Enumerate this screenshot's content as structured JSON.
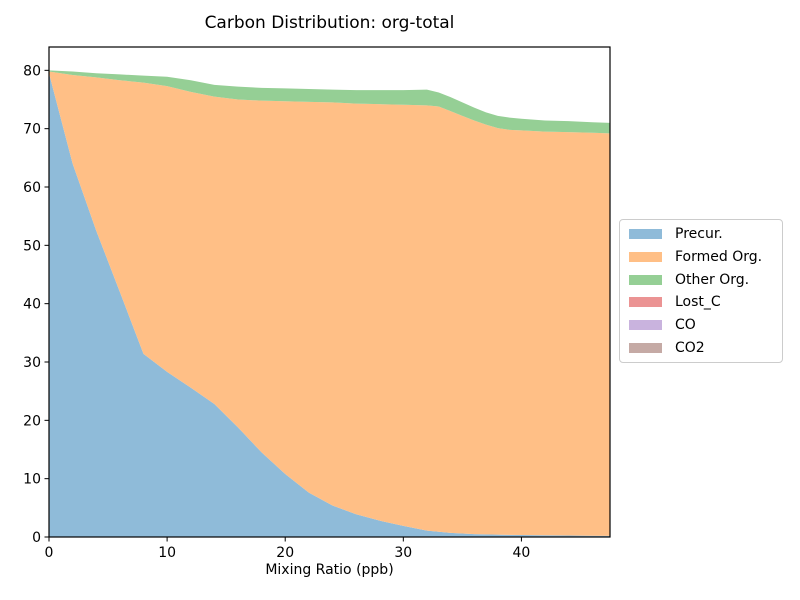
{
  "chart_data": {
    "type": "area",
    "stacked": true,
    "title": "Carbon Distribution: org-total",
    "xlabel": "Mixing Ratio (ppb)",
    "ylabel": "",
    "grid": false,
    "legend_position": "center right, outside axes",
    "xlim": [
      0,
      47.5
    ],
    "ylim": [
      0,
      84
    ],
    "xticks": [
      0,
      10,
      20,
      30,
      40
    ],
    "yticks": [
      0,
      10,
      20,
      30,
      40,
      50,
      60,
      70,
      80
    ],
    "x": [
      0,
      2,
      4,
      6,
      8,
      10,
      12,
      14,
      16,
      18,
      20,
      22,
      24,
      26,
      28,
      30,
      32,
      33,
      34,
      35,
      36,
      37,
      38,
      39,
      40,
      42,
      44,
      46,
      47.5
    ],
    "series": [
      {
        "id": "precur",
        "name": "Precur.",
        "color": "#8fbbd9",
        "values": [
          79.5,
          64,
          52.5,
          42,
          31.4,
          28.3,
          25.6,
          22.8,
          18.8,
          14.5,
          10.8,
          7.6,
          5.4,
          3.9,
          2.8,
          1.9,
          1.1,
          0.9,
          0.7,
          0.6,
          0.5,
          0.45,
          0.4,
          0.37,
          0.35,
          0.3,
          0.25,
          0.22,
          0.2
        ]
      },
      {
        "id": "formed-org",
        "name": "Formed Org.",
        "color": "#ffbf86",
        "values": [
          0.3,
          15.2,
          26.3,
          36.3,
          46.5,
          49.0,
          50.7,
          52.7,
          56.2,
          60.3,
          63.9,
          67.0,
          69.1,
          70.4,
          71.4,
          72.2,
          72.9,
          72.9,
          72.3,
          71.6,
          70.9,
          70.25,
          69.7,
          69.43,
          69.35,
          69.2,
          69.15,
          69.08,
          69.0
        ]
      },
      {
        "id": "other-org",
        "name": "Other Org.",
        "color": "#95cf95",
        "values": [
          0.2,
          0.6,
          0.7,
          1.0,
          1.2,
          1.6,
          2.0,
          2.0,
          2.2,
          2.2,
          2.2,
          2.2,
          2.2,
          2.3,
          2.4,
          2.5,
          2.7,
          2.4,
          2.4,
          2.3,
          2.2,
          2.1,
          2.1,
          2.1,
          2.0,
          1.9,
          1.9,
          1.8,
          1.8
        ]
      },
      {
        "id": "lost-c",
        "name": "Lost_C",
        "color": "#eb9393",
        "values": [
          0,
          0,
          0,
          0,
          0,
          0,
          0,
          0,
          0,
          0,
          0,
          0,
          0,
          0,
          0,
          0,
          0,
          0,
          0,
          0,
          0,
          0,
          0,
          0,
          0,
          0,
          0,
          0,
          0
        ]
      },
      {
        "id": "co",
        "name": "CO",
        "color": "#c9b3de",
        "values": [
          0,
          0,
          0,
          0,
          0,
          0,
          0,
          0,
          0,
          0,
          0,
          0,
          0,
          0,
          0,
          0,
          0,
          0,
          0,
          0,
          0,
          0,
          0,
          0,
          0,
          0,
          0,
          0,
          0
        ]
      },
      {
        "id": "co2",
        "name": "CO2",
        "color": "#c5aaa5",
        "values": [
          0,
          0,
          0,
          0,
          0,
          0,
          0,
          0,
          0,
          0,
          0,
          0,
          0,
          0,
          0,
          0,
          0,
          0,
          0,
          0,
          0,
          0,
          0,
          0,
          0,
          0,
          0,
          0,
          0
        ]
      }
    ]
  }
}
